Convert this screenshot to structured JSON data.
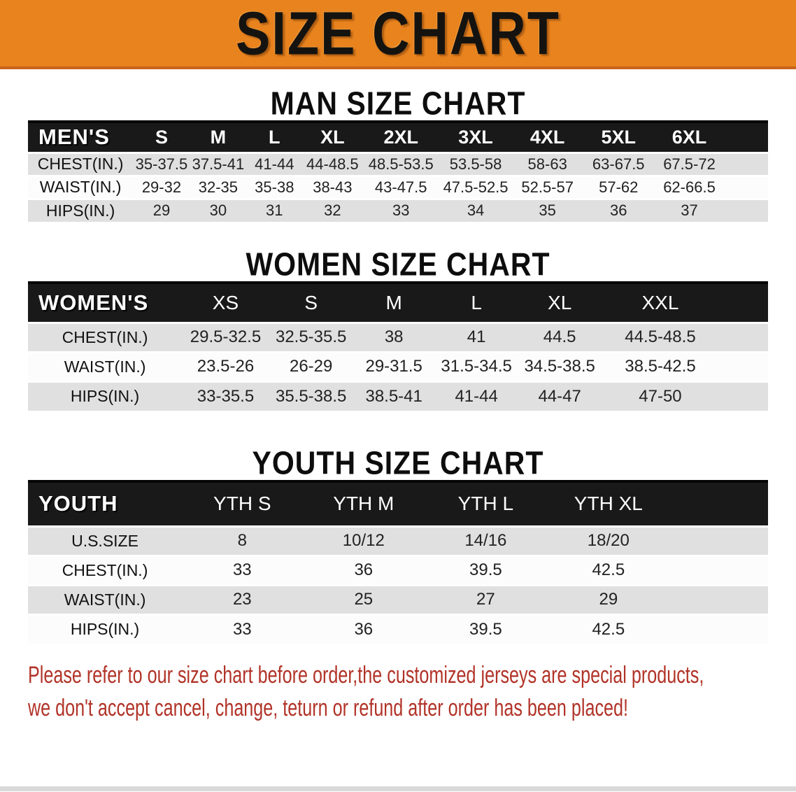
{
  "banner": {
    "title": "SIZE CHART"
  },
  "sections": {
    "men": {
      "heading": "MAN SIZE CHART",
      "table": {
        "label": "MEN'S",
        "sizes": [
          "S",
          "M",
          "L",
          "XL",
          "2XL",
          "3XL",
          "4XL",
          "5XL",
          "6XL"
        ],
        "rows": [
          {
            "label": "CHEST(IN.)",
            "values": [
              "35-37.5",
              "37.5-41",
              "41-44",
              "44-48.5",
              "48.5-53.5",
              "53.5-58",
              "58-63",
              "63-67.5",
              "67.5-72"
            ]
          },
          {
            "label": "WAIST(IN.)",
            "values": [
              "29-32",
              "32-35",
              "35-38",
              "38-43",
              "43-47.5",
              "47.5-52.5",
              "52.5-57",
              "57-62",
              "62-66.5"
            ]
          },
          {
            "label": "HIPS(IN.)",
            "values": [
              "29",
              "30",
              "31",
              "32",
              "33",
              "34",
              "35",
              "36",
              "37"
            ]
          }
        ]
      }
    },
    "women": {
      "heading": "WOMEN SIZE CHART",
      "table": {
        "label": "WOMEN'S",
        "sizes": [
          "XS",
          "S",
          "M",
          "L",
          "XL",
          "XXL"
        ],
        "rows": [
          {
            "label": "CHEST(IN.)",
            "values": [
              "29.5-32.5",
              "32.5-35.5",
              "38",
              "41",
              "44.5",
              "44.5-48.5"
            ]
          },
          {
            "label": "WAIST(IN.)",
            "values": [
              "23.5-26",
              "26-29",
              "29-31.5",
              "31.5-34.5",
              "34.5-38.5",
              "38.5-42.5"
            ]
          },
          {
            "label": "HIPS(IN.)",
            "values": [
              "33-35.5",
              "35.5-38.5",
              "38.5-41",
              "41-44",
              "44-47",
              "47-50"
            ]
          }
        ]
      }
    },
    "youth": {
      "heading": "YOUTH SIZE CHART",
      "table": {
        "label": "YOUTH",
        "sizes": [
          "YTH S",
          "YTH M",
          "YTH L",
          "YTH XL"
        ],
        "rows": [
          {
            "label": "U.S.SIZE",
            "values": [
              "8",
              "10/12",
              "14/16",
              "18/20"
            ]
          },
          {
            "label": "CHEST(IN.)",
            "values": [
              "33",
              "36",
              "39.5",
              "42.5"
            ]
          },
          {
            "label": "WAIST(IN.)",
            "values": [
              "23",
              "25",
              "27",
              "29"
            ]
          },
          {
            "label": "HIPS(IN.)",
            "values": [
              "33",
              "36",
              "39.5",
              "42.5"
            ]
          }
        ]
      }
    }
  },
  "disclaimer": {
    "line1": "Please refer to our size chart before order,the customized jerseys are special products,",
    "line2": "we don't accept cancel, change, teturn or refund after order has been placed!"
  },
  "colors": {
    "banner_bg": "#E8831E",
    "banner_border": "#C9641A",
    "table_header_bg": "#191919",
    "row_gray": "#E0E0E0",
    "row_white": "#FCFCFC",
    "disclaimer_red": "#B13328"
  }
}
